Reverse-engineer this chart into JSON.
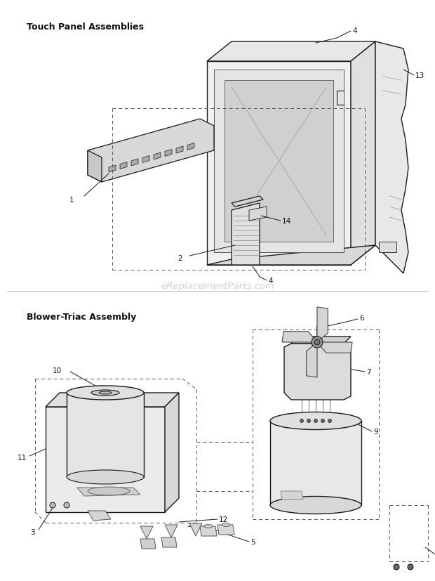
{
  "background_color": "#ffffff",
  "line_color": "#1a1a1a",
  "section1_label": "Touch Panel Assemblies",
  "section2_label": "Blower-Triac Assembly",
  "watermark": "eReplacementParts.com",
  "fig_width": 6.2,
  "fig_height": 8.28,
  "dpi": 100
}
